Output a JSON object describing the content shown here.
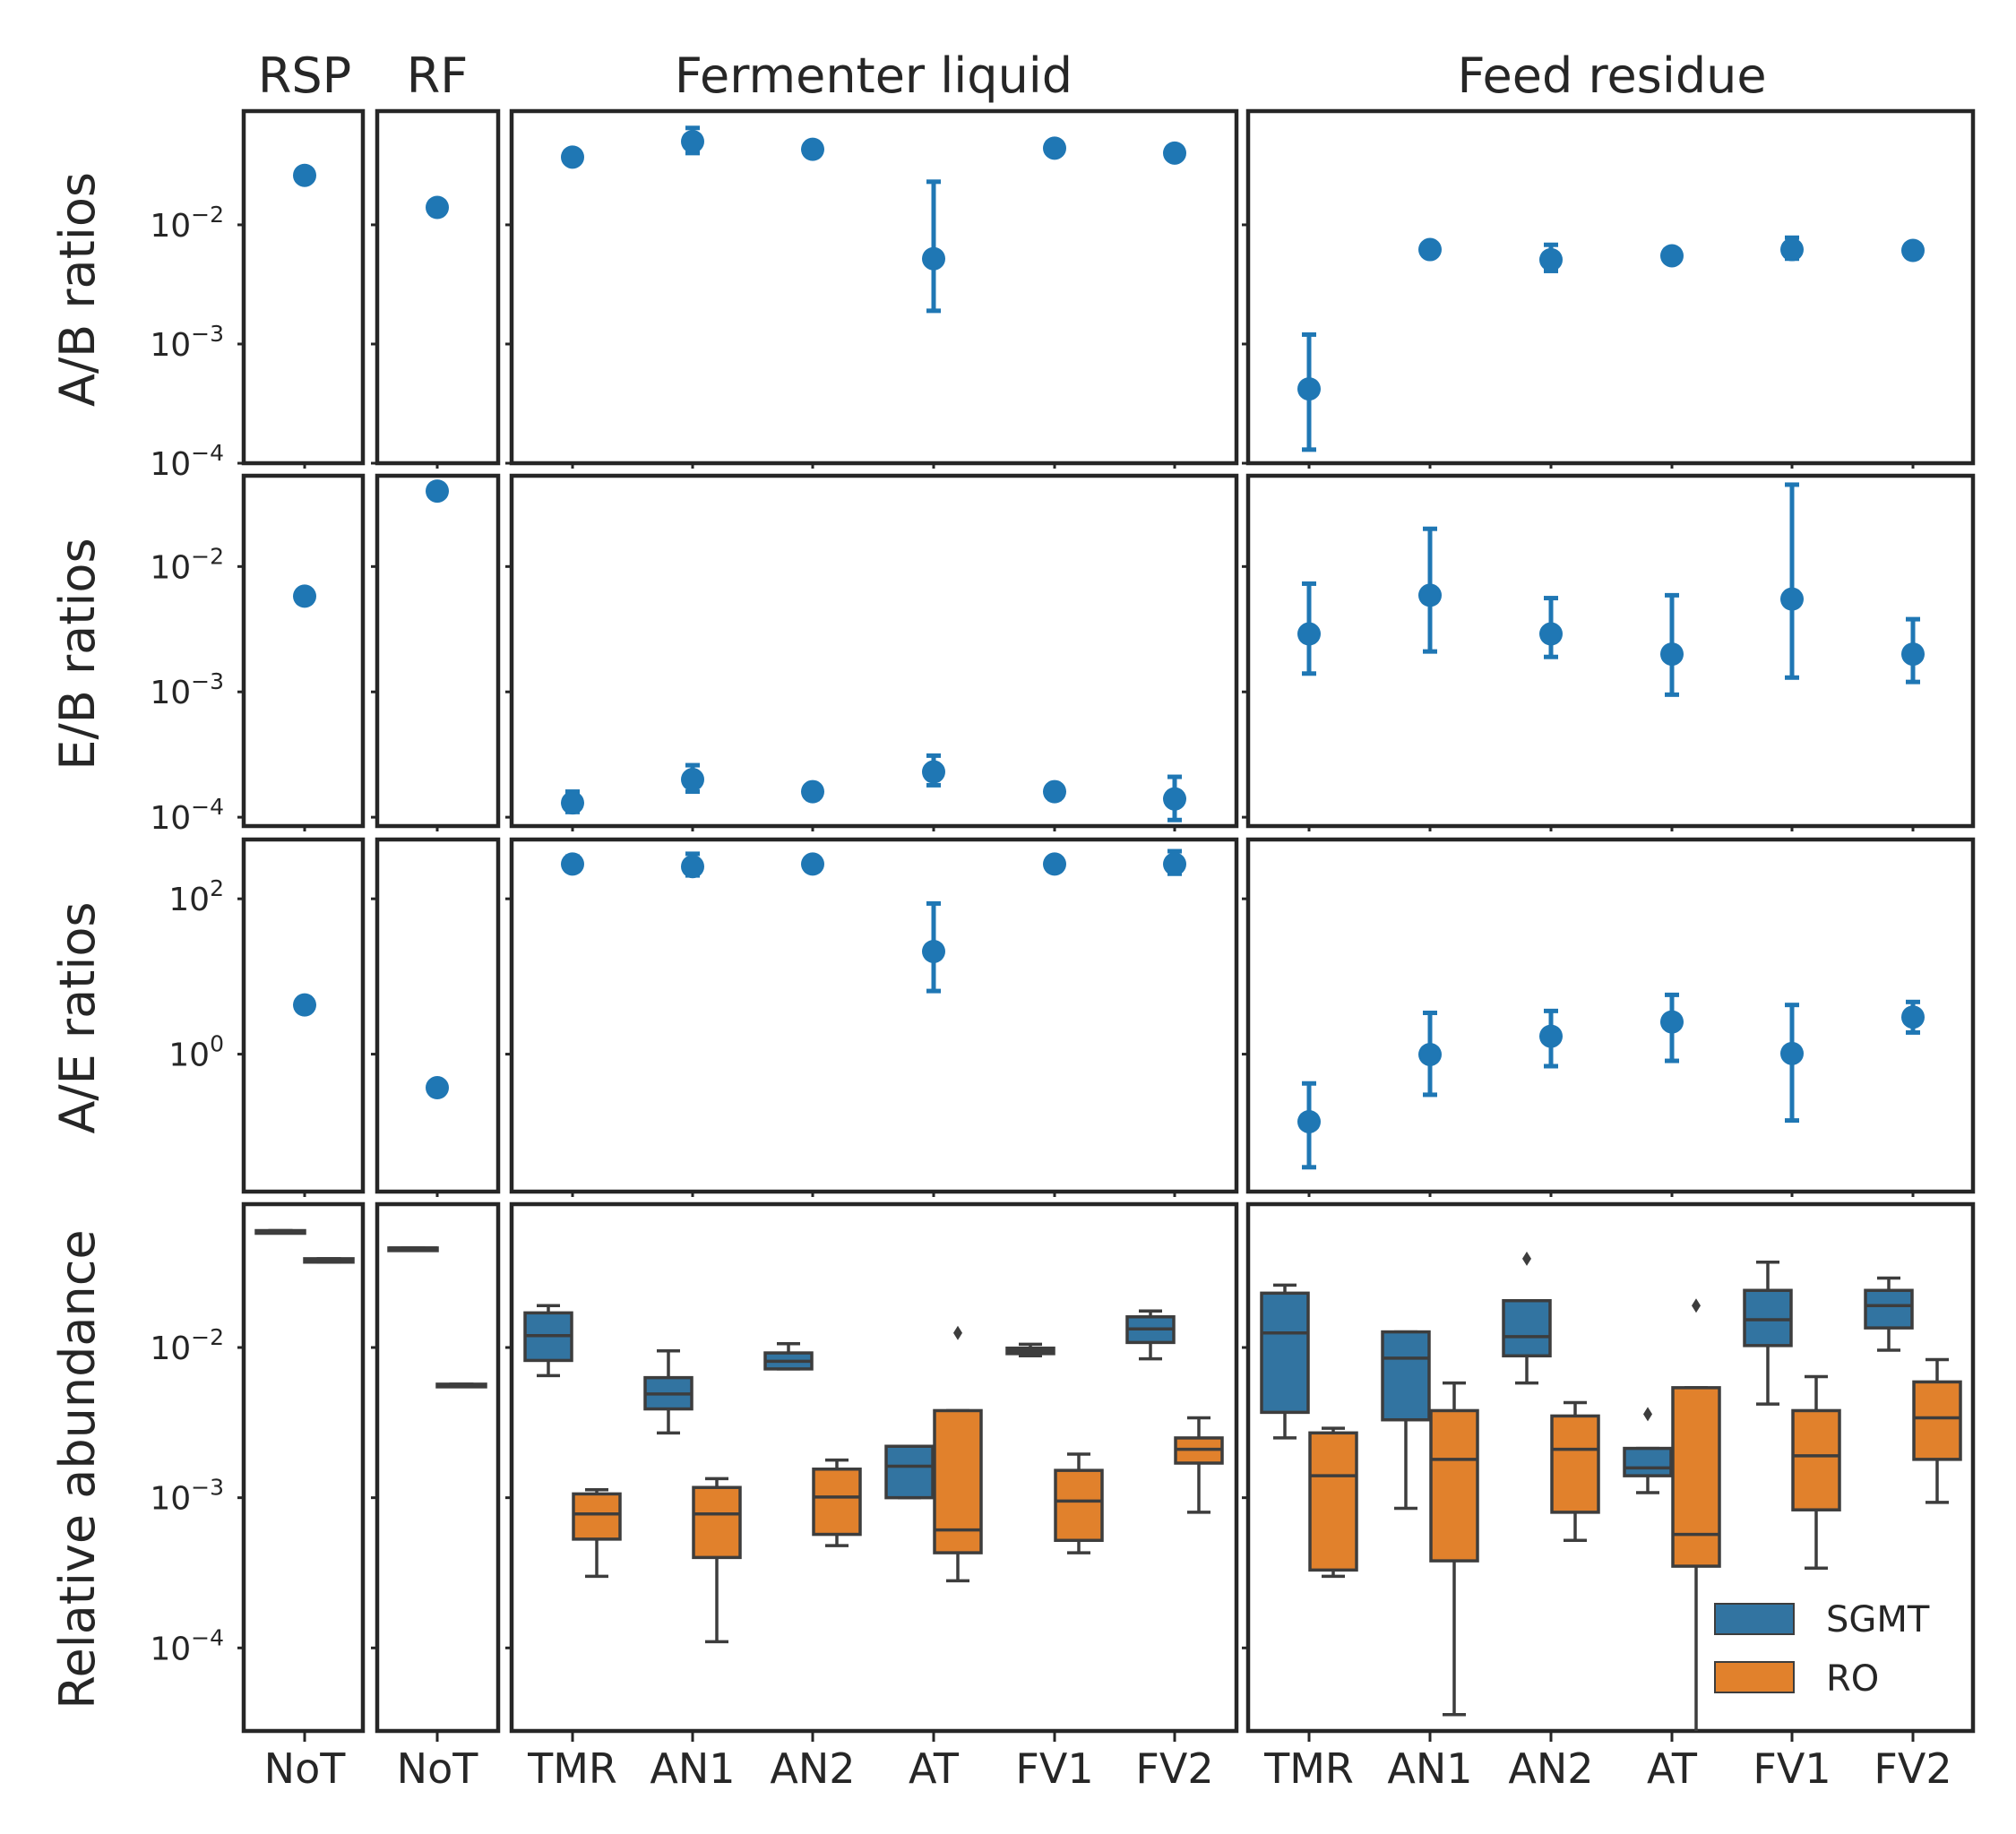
{
  "chart_data": {
    "type": "faceted-scatter-boxplot",
    "colors": {
      "series_point": "#1f77b4",
      "SGMT": "#3274a1",
      "RO": "#e1812c",
      "axes": "#262626"
    },
    "grid": false,
    "columns": [
      {
        "title": "RSP",
        "categories": [
          "NoT"
        ]
      },
      {
        "title": "RF",
        "categories": [
          "NoT"
        ]
      },
      {
        "title": "Fermenter liquid",
        "categories": [
          "TMR",
          "AN1",
          "AN2",
          "AT",
          "FV1",
          "FV2"
        ]
      },
      {
        "title": "Feed residue",
        "categories": [
          "TMR",
          "AN1",
          "AN2",
          "AT",
          "FV1",
          "FV2"
        ]
      }
    ],
    "rows": [
      {
        "ylabel": "A/B ratios",
        "yscale": "log",
        "ylim": [
          0.0001,
          0.09
        ],
        "yticks": [
          {
            "base": "10",
            "exp": "−2",
            "v": 0.01
          },
          {
            "base": "10",
            "exp": "−3",
            "v": 0.001
          },
          {
            "base": "10",
            "exp": "−4",
            "v": 0.0001
          }
        ],
        "points": [
          [
            {
              "y": 0.026
            }
          ],
          [
            {
              "y": 0.014
            }
          ],
          [
            {
              "y": 0.037
            },
            {
              "y": 0.05,
              "lo": 0.04,
              "hi": 0.065
            },
            {
              "y": 0.043
            },
            {
              "y": 0.0052,
              "lo": 0.0019,
              "hi": 0.023
            },
            {
              "y": 0.044
            },
            {
              "y": 0.04
            }
          ],
          [
            {
              "y": 0.00042,
              "lo": 0.00013,
              "hi": 0.0012
            },
            {
              "y": 0.0062
            },
            {
              "y": 0.0051,
              "lo": 0.0041,
              "hi": 0.0068
            },
            {
              "y": 0.0055
            },
            {
              "y": 0.0062,
              "lo": 0.0052,
              "hi": 0.0078
            },
            {
              "y": 0.0061
            }
          ]
        ]
      },
      {
        "ylabel": "E/B ratios",
        "yscale": "log",
        "ylim": [
          8.5e-05,
          0.053
        ],
        "yticks": [
          {
            "base": "10",
            "exp": "−2",
            "v": 0.01
          },
          {
            "base": "10",
            "exp": "−3",
            "v": 0.001
          },
          {
            "base": "10",
            "exp": "−4",
            "v": 0.0001
          }
        ],
        "points": [
          [
            {
              "y": 0.0058
            }
          ],
          [
            {
              "y": 0.04
            }
          ],
          [
            {
              "y": 0.00013,
              "lo": 0.00011,
              "hi": 0.00016
            },
            {
              "y": 0.0002,
              "lo": 0.00016,
              "hi": 0.00026
            },
            {
              "y": 0.00016,
              "lo": 0.00014,
              "hi": 0.00018
            },
            {
              "y": 0.00023,
              "lo": 0.00018,
              "hi": 0.00031
            },
            {
              "y": 0.00016,
              "lo": 0.00014,
              "hi": 0.00018
            },
            {
              "y": 0.00014,
              "lo": 9.5e-05,
              "hi": 0.00021
            }
          ],
          [
            {
              "y": 0.0029,
              "lo": 0.0014,
              "hi": 0.0073
            },
            {
              "y": 0.0059,
              "lo": 0.0021,
              "hi": 0.02
            },
            {
              "y": 0.0029,
              "lo": 0.0019,
              "hi": 0.0056
            },
            {
              "y": 0.002,
              "lo": 0.00095,
              "hi": 0.0059
            },
            {
              "y": 0.0055,
              "lo": 0.0013,
              "hi": 0.045
            },
            {
              "y": 0.002,
              "lo": 0.0012,
              "hi": 0.0038
            }
          ]
        ]
      },
      {
        "ylabel": "A/E ratios",
        "yscale": "log",
        "ylim": [
          0.017,
          580
        ],
        "yticks": [
          {
            "base": "10",
            "exp": "2",
            "v": 100
          },
          {
            "base": "10",
            "exp": "0",
            "v": 1
          }
        ],
        "points": [
          [
            {
              "y": 4.3
            }
          ],
          [
            {
              "y": 0.37
            }
          ],
          [
            {
              "y": 280,
              "lo": 230,
              "hi": 350
            },
            {
              "y": 260,
              "lo": 200,
              "hi": 380
            },
            {
              "y": 280
            },
            {
              "y": 21,
              "lo": 6.5,
              "hi": 87
            },
            {
              "y": 280,
              "lo": 240,
              "hi": 330
            },
            {
              "y": 280,
              "lo": 210,
              "hi": 410
            }
          ],
          [
            {
              "y": 0.135,
              "lo": 0.035,
              "hi": 0.42
            },
            {
              "y": 0.99,
              "lo": 0.3,
              "hi": 3.4
            },
            {
              "y": 1.7,
              "lo": 0.7,
              "hi": 3.6
            },
            {
              "y": 2.6,
              "lo": 0.82,
              "hi": 5.8
            },
            {
              "y": 1.02,
              "lo": 0.14,
              "hi": 4.3
            },
            {
              "y": 3.0,
              "lo": 1.9,
              "hi": 4.7
            }
          ]
        ]
      },
      {
        "ylabel": "Relative abundance",
        "yscale": "log",
        "ylim": [
          2.8e-05,
          0.09
        ],
        "yticks": [
          {
            "base": "10",
            "exp": "−2",
            "v": 0.01
          },
          {
            "base": "10",
            "exp": "−3",
            "v": 0.001
          },
          {
            "base": "10",
            "exp": "−4",
            "v": 0.0001
          }
        ],
        "boxes": [
          [
            {
              "SGMT": {
                "wlo": 0.058,
                "q1": 0.058,
                "med": 0.059,
                "q3": 0.06,
                "whi": 0.06
              },
              "RO": {
                "wlo": 0.037,
                "q1": 0.037,
                "med": 0.038,
                "q3": 0.039,
                "whi": 0.039
              }
            }
          ],
          [
            {
              "SGMT": {
                "wlo": 0.046,
                "q1": 0.046,
                "med": 0.046,
                "q3": 0.046,
                "whi": 0.046
              },
              "RO": {
                "wlo": 0.0055,
                "q1": 0.0055,
                "med": 0.0056,
                "q3": 0.0057,
                "whi": 0.0057
              }
            }
          ],
          [
            {
              "SGMT": {
                "wlo": 0.0065,
                "q1": 0.0082,
                "med": 0.012,
                "q3": 0.017,
                "whi": 0.019
              },
              "RO": {
                "wlo": 0.0003,
                "q1": 0.00053,
                "med": 0.00078,
                "q3": 0.00106,
                "whi": 0.00113
              }
            },
            {
              "SGMT": {
                "wlo": 0.0027,
                "q1": 0.0039,
                "med": 0.0049,
                "q3": 0.0063,
                "whi": 0.0095
              },
              "RO": {
                "wlo": 0.00011,
                "q1": 0.0004,
                "med": 0.00078,
                "q3": 0.00117,
                "whi": 0.00134
              }
            },
            {
              "SGMT": {
                "wlo": 0.0072,
                "q1": 0.0072,
                "med": 0.0081,
                "q3": 0.0092,
                "whi": 0.0106
              },
              "RO": {
                "wlo": 0.00048,
                "q1": 0.00057,
                "med": 0.00101,
                "q3": 0.00155,
                "whi": 0.00178
              }
            },
            {
              "SGMT": {
                "wlo": 0.001,
                "q1": 0.001,
                "med": 0.00162,
                "q3": 0.0022,
                "whi": 0.0022
              },
              "RO": {
                "wlo": 0.00028,
                "q1": 0.00043,
                "med": 0.00061,
                "q3": 0.0038,
                "whi": 0.0038,
                "outliers": [
                  0.0125
                ]
              }
            },
            {
              "SGMT": {
                "wlo": 0.0088,
                "q1": 0.0091,
                "med": 0.0095,
                "q3": 0.0099,
                "whi": 0.0105
              },
              "RO": {
                "wlo": 0.00043,
                "q1": 0.00052,
                "med": 0.00095,
                "q3": 0.00152,
                "whi": 0.00195
              }
            },
            {
              "SGMT": {
                "wlo": 0.0084,
                "q1": 0.0108,
                "med": 0.0133,
                "q3": 0.016,
                "whi": 0.0175
              },
              "RO": {
                "wlo": 0.0008,
                "q1": 0.0017,
                "med": 0.0021,
                "q3": 0.0025,
                "whi": 0.0034
              }
            }
          ],
          [
            {
              "SGMT": {
                "wlo": 0.0025,
                "q1": 0.0037,
                "med": 0.0125,
                "q3": 0.023,
                "whi": 0.026
              },
              "RO": {
                "wlo": 0.0003,
                "q1": 0.00033,
                "med": 0.0014,
                "q3": 0.0027,
                "whi": 0.0029
              }
            },
            {
              "SGMT": {
                "wlo": 0.00085,
                "q1": 0.0033,
                "med": 0.0085,
                "q3": 0.0127,
                "whi": 0.0127
              },
              "RO": {
                "wlo": 3.6e-05,
                "q1": 0.00038,
                "med": 0.0018,
                "q3": 0.0038,
                "whi": 0.0058
              }
            },
            {
              "SGMT": {
                "wlo": 0.0058,
                "q1": 0.0088,
                "med": 0.0118,
                "q3": 0.0205,
                "whi": 0.0205,
                "outliers": [
                  0.039
                ]
              },
              "RO": {
                "wlo": 0.00052,
                "q1": 0.0008,
                "med": 0.0021,
                "q3": 0.0035,
                "whi": 0.0043
              }
            },
            {
              "SGMT": {
                "wlo": 0.00108,
                "q1": 0.0014,
                "med": 0.00158,
                "q3": 0.00213,
                "whi": 0.00213,
                "outliers": [
                  0.0036
                ]
              },
              "RO": {
                "wlo": 2e-05,
                "q1": 0.00035,
                "med": 0.00057,
                "q3": 0.0054,
                "whi": 0.0054,
                "outliers": [
                  0.019
                ]
              }
            },
            {
              "SGMT": {
                "wlo": 0.0042,
                "q1": 0.0103,
                "med": 0.0153,
                "q3": 0.024,
                "whi": 0.037
              },
              "RO": {
                "wlo": 0.00034,
                "q1": 0.00083,
                "med": 0.0019,
                "q3": 0.0038,
                "whi": 0.0064
              }
            },
            {
              "SGMT": {
                "wlo": 0.0096,
                "q1": 0.0135,
                "med": 0.019,
                "q3": 0.024,
                "whi": 0.029
              },
              "RO": {
                "wlo": 0.00093,
                "q1": 0.0018,
                "med": 0.0034,
                "q3": 0.0059,
                "whi": 0.0083
              }
            }
          ]
        ]
      }
    ],
    "legend": [
      {
        "label": "SGMT"
      },
      {
        "label": "RO"
      }
    ],
    "legend_location": "lower-right of Relative abundance / Feed residue panel"
  }
}
